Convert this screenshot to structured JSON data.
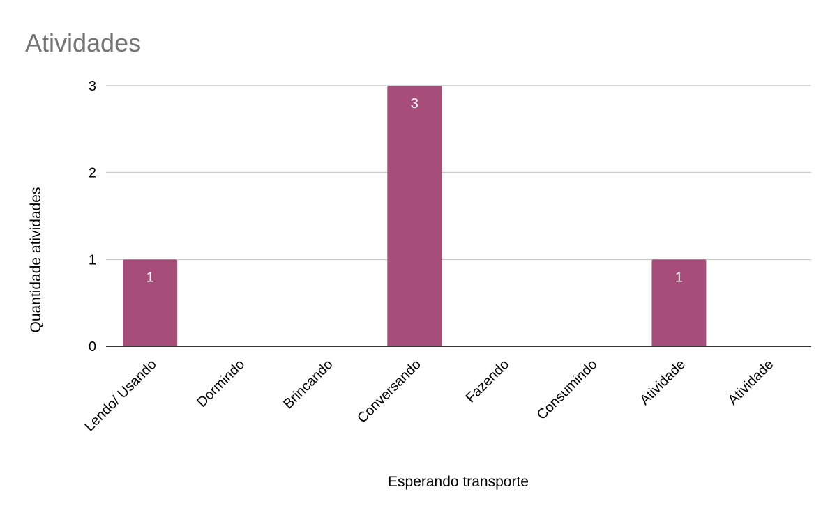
{
  "chart_data": {
    "type": "bar",
    "title": "Atividades",
    "xlabel": "Esperando transporte",
    "ylabel": "Quantidade atividades",
    "categories": [
      "Lendo/ Usando",
      "Dormindo",
      "Brincando",
      "Conversando",
      "Fazendo",
      "Consumindo",
      "Atividade",
      "Atividade"
    ],
    "values": [
      1,
      0,
      0,
      3,
      0,
      0,
      1,
      0
    ],
    "data_labels": [
      "1",
      "",
      "",
      "3",
      "",
      "",
      "1",
      ""
    ],
    "ylim": [
      0,
      3
    ],
    "yticks": [
      0,
      1,
      2,
      3
    ],
    "grid": true,
    "legend": "none",
    "colors": {
      "bar": "#a64d79",
      "title": "#757575",
      "grid": "#cccccc",
      "baseline": "#333333"
    }
  }
}
